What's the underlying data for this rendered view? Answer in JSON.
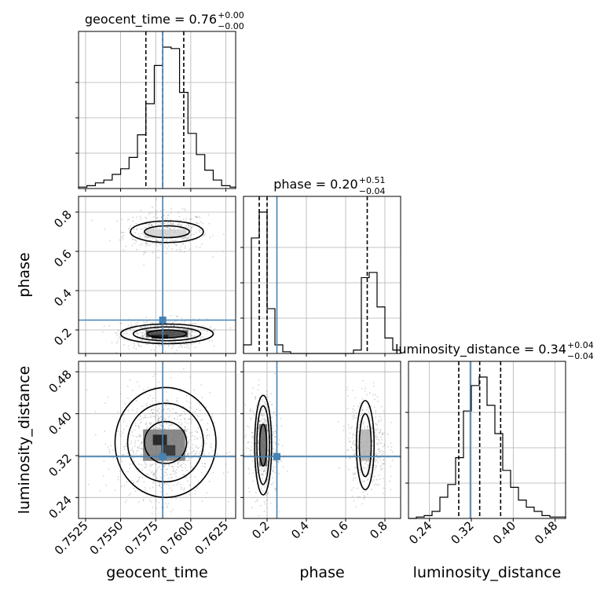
{
  "chart_data": {
    "type": "corner",
    "parameters": [
      "geocent_time",
      "phase",
      "luminosity_distance"
    ],
    "axis_labels": [
      "geocent_time",
      "phase",
      "luminosity_distance"
    ],
    "titles": [
      {
        "param": "geocent_time",
        "text": "geocent_time = 0.76",
        "plus": "+0.00",
        "minus": "−0.00"
      },
      {
        "param": "phase",
        "text": "phase = 0.20",
        "plus": "+0.51",
        "minus": "−0.04"
      },
      {
        "param": "luminosity_distance",
        "text": "luminosity_distance = 0.34",
        "plus": "+0.04",
        "minus": "−0.04"
      }
    ],
    "ranges": {
      "geocent_time": [
        0.752,
        0.7632
      ],
      "phase": [
        0.08,
        0.88
      ],
      "luminosity_distance": [
        0.2,
        0.5
      ]
    },
    "ticks": {
      "geocent_time": [
        "0.7525",
        "0.7550",
        "0.7575",
        "0.7600",
        "0.7625"
      ],
      "phase": [
        "0.2",
        "0.4",
        "0.6",
        "0.8"
      ],
      "luminosity_distance": [
        "0.24",
        "0.32",
        "0.40",
        "0.48"
      ]
    },
    "truths": {
      "geocent_time": 0.758,
      "phase": 0.25,
      "luminosity_distance": 0.318
    },
    "quantiles": {
      "geocent_time": [
        0.7568,
        0.758,
        0.7595
      ],
      "phase": [
        0.16,
        0.2,
        0.71
      ],
      "luminosity_distance": [
        0.296,
        0.336,
        0.376
      ]
    },
    "histograms": {
      "geocent_time": {
        "edges": [
          0.752,
          0.7526,
          0.7532,
          0.7538,
          0.7544,
          0.755,
          0.7556,
          0.7562,
          0.7568,
          0.7574,
          0.758,
          0.7586,
          0.7592,
          0.7598,
          0.7604,
          0.761,
          0.7616,
          0.7622,
          0.7628,
          0.7632
        ],
        "counts": [
          1,
          2,
          4,
          6,
          10,
          14,
          22,
          38,
          60,
          87,
          100,
          99,
          68,
          39,
          24,
          13,
          6,
          2,
          1
        ]
      },
      "phase": {
        "edges": [
          0.08,
          0.12,
          0.16,
          0.2,
          0.24,
          0.28,
          0.32,
          0.36,
          0.4,
          0.44,
          0.48,
          0.52,
          0.56,
          0.6,
          0.64,
          0.68,
          0.72,
          0.76,
          0.8,
          0.84,
          0.88
        ],
        "counts": [
          5,
          67,
          82,
          26,
          5,
          1,
          0,
          0,
          0,
          0,
          0,
          0,
          0,
          0,
          2,
          44,
          47,
          27,
          9,
          2
        ]
      },
      "luminosity_distance": {
        "edges": [
          0.2,
          0.215,
          0.23,
          0.245,
          0.26,
          0.275,
          0.29,
          0.305,
          0.32,
          0.335,
          0.35,
          0.365,
          0.38,
          0.395,
          0.41,
          0.425,
          0.44,
          0.455,
          0.47,
          0.485,
          0.5
        ],
        "counts": [
          0,
          1,
          2,
          5,
          15,
          24,
          43,
          76,
          94,
          100,
          80,
          60,
          34,
          22,
          13,
          8,
          5,
          2,
          1,
          1
        ]
      }
    },
    "scatter_blobs": [
      {
        "x": "geocent_time",
        "y": "phase",
        "cx": 0.7582,
        "cy": 0.7,
        "sx": 0.0012,
        "sy": 0.04,
        "n": 420
      },
      {
        "x": "geocent_time",
        "y": "phase",
        "cx": 0.7581,
        "cy": 0.18,
        "sx": 0.0012,
        "sy": 0.03,
        "n": 520
      },
      {
        "x": "geocent_time",
        "y": "luminosity_distance",
        "cx": 0.7581,
        "cy": 0.34,
        "sx": 0.0013,
        "sy": 0.04,
        "n": 900
      },
      {
        "x": "phase",
        "y": "luminosity_distance",
        "cx": 0.18,
        "cy": 0.34,
        "sx": 0.03,
        "sy": 0.04,
        "n": 480
      },
      {
        "x": "phase",
        "y": "luminosity_distance",
        "cx": 0.71,
        "cy": 0.34,
        "sx": 0.04,
        "sy": 0.04,
        "n": 420
      }
    ],
    "density_cells": [
      {
        "x": "geocent_time",
        "y": "phase",
        "cx": 0.7583,
        "cy": 0.18,
        "w": 0.003,
        "h": 0.035,
        "shade": 0.85
      },
      {
        "x": "geocent_time",
        "y": "phase",
        "cx": 0.7578,
        "cy": 0.165,
        "w": 0.0012,
        "h": 0.02,
        "shade": 1.0
      },
      {
        "x": "geocent_time",
        "y": "phase",
        "cx": 0.7582,
        "cy": 0.69,
        "w": 0.003,
        "h": 0.045,
        "shade": 0.2
      },
      {
        "x": "geocent_time",
        "y": "luminosity_distance",
        "cx": 0.7581,
        "cy": 0.34,
        "w": 0.003,
        "h": 0.06,
        "shade": 0.6
      },
      {
        "x": "geocent_time",
        "y": "luminosity_distance",
        "cx": 0.7578,
        "cy": 0.35,
        "w": 0.001,
        "h": 0.02,
        "shade": 1.0
      },
      {
        "x": "geocent_time",
        "y": "luminosity_distance",
        "cx": 0.7584,
        "cy": 0.33,
        "w": 0.001,
        "h": 0.02,
        "shade": 0.9
      },
      {
        "x": "phase",
        "y": "luminosity_distance",
        "cx": 0.18,
        "cy": 0.34,
        "w": 0.04,
        "h": 0.08,
        "shade": 0.7
      },
      {
        "x": "phase",
        "y": "luminosity_distance",
        "cx": 0.7,
        "cy": 0.34,
        "w": 0.05,
        "h": 0.06,
        "shade": 0.35
      }
    ],
    "contours": [
      {
        "x": "geocent_time",
        "y": "phase",
        "cx": 0.7583,
        "cy": 0.7,
        "rx": [
          0.0026,
          0.0016
        ],
        "ry": [
          0.055,
          0.03
        ]
      },
      {
        "x": "geocent_time",
        "y": "phase",
        "cx": 0.7583,
        "cy": 0.18,
        "rx": [
          0.0033,
          0.0024,
          0.0014
        ],
        "ry": [
          0.05,
          0.035,
          0.02
        ]
      },
      {
        "x": "geocent_time",
        "y": "luminosity_distance",
        "cx": 0.7582,
        "cy": 0.345,
        "rx": [
          0.0036,
          0.0027,
          0.0015
        ],
        "ry": [
          0.105,
          0.075,
          0.04
        ]
      },
      {
        "x": "phase",
        "y": "luminosity_distance",
        "cx": 0.18,
        "cy": 0.34,
        "rx": [
          0.043,
          0.032,
          0.018
        ],
        "ry": [
          0.095,
          0.075,
          0.04
        ]
      },
      {
        "x": "phase",
        "y": "luminosity_distance",
        "cx": 0.7,
        "cy": 0.34,
        "rx": [
          0.045,
          0.03
        ],
        "ry": [
          0.085,
          0.06
        ]
      }
    ],
    "grid": true,
    "truth_color": "#4682b4",
    "colors": {
      "hist": "#000000",
      "scatter": "#888888",
      "contour": "#000000"
    }
  }
}
